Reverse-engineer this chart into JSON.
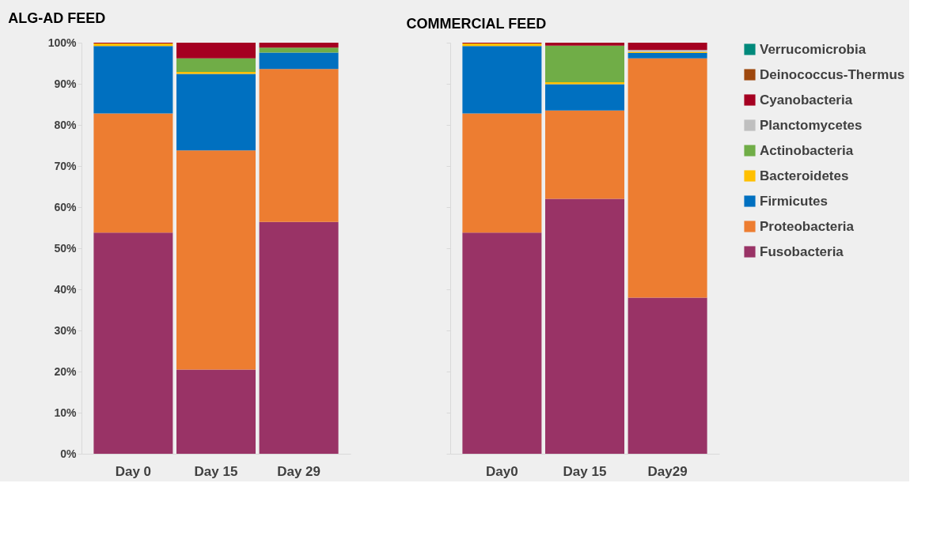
{
  "chart_data": [
    {
      "type": "bar",
      "stacked": true,
      "title": "ALG-AD FEED",
      "categories": [
        "Day 0",
        "Day 15",
        "Day 29"
      ],
      "ylim": [
        0,
        100
      ],
      "yticks": [
        {
          "value": 0,
          "label": "0%"
        },
        {
          "value": 10,
          "label": "10%"
        },
        {
          "value": 20,
          "label": "20%"
        },
        {
          "value": 30,
          "label": "30%"
        },
        {
          "value": 40,
          "label": "40%"
        },
        {
          "value": 50,
          "label": "50%"
        },
        {
          "value": 60,
          "label": "60%"
        },
        {
          "value": 70,
          "label": "70%"
        },
        {
          "value": 80,
          "label": "80%"
        },
        {
          "value": 90,
          "label": "90%"
        },
        {
          "value": 100,
          "label": "100%"
        }
      ],
      "grid": false,
      "legend": false,
      "series": [
        {
          "color": "#993366",
          "values": [
            53.8,
            20.5,
            56.4
          ]
        },
        {
          "color": "#ed7d31",
          "values": [
            29.0,
            53.3,
            37.2
          ]
        },
        {
          "color": "#0070c0",
          "values": [
            16.4,
            18.6,
            4.0
          ]
        },
        {
          "color": "#ffc000",
          "values": [
            0.6,
            0.5,
            null
          ]
        },
        {
          "color": "#70ad47",
          "values": [
            null,
            3.3,
            1.2
          ]
        },
        {
          "color": "#a50021",
          "values": [
            0.2,
            3.8,
            1.2
          ]
        }
      ]
    },
    {
      "type": "bar",
      "stacked": true,
      "title": "COMMERCIAL FEED",
      "categories": [
        "Day0",
        "Day 15",
        "Day29"
      ],
      "ylim": [
        0,
        100
      ],
      "yticks": [
        {
          "value": 0,
          "label": null
        },
        {
          "value": 10,
          "label": null
        },
        {
          "value": 20,
          "label": null
        },
        {
          "value": 30,
          "label": null
        },
        {
          "value": 40,
          "label": null
        },
        {
          "value": 50,
          "label": null
        },
        {
          "value": 60,
          "label": null
        },
        {
          "value": 70,
          "label": null
        },
        {
          "value": 80,
          "label": null
        },
        {
          "value": 90,
          "label": null
        },
        {
          "value": 100,
          "label": null
        }
      ],
      "tick_labels": "x",
      "grid": false,
      "legend": "right",
      "series": [
        {
          "name": "Fusobacteria",
          "color": "#993366",
          "values": [
            53.8,
            62.0,
            38.0
          ]
        },
        {
          "name": "Proteobacteria",
          "color": "#ed7d31",
          "values": [
            29.0,
            21.5,
            58.2
          ]
        },
        {
          "name": "Firmicutes",
          "color": "#0070c0",
          "values": [
            16.4,
            6.4,
            1.3
          ]
        },
        {
          "name": "Bacteroidetes",
          "color": "#ffc000",
          "values": [
            0.6,
            0.5,
            0.3
          ]
        },
        {
          "name": "Actinobacteria",
          "color": "#70ad47",
          "values": [
            null,
            8.9,
            null
          ]
        },
        {
          "name": "Planctomycetes",
          "color": "#bfbfbf",
          "values": [
            null,
            null,
            0.4
          ]
        },
        {
          "name": "Cyanobacteria",
          "color": "#a50021",
          "values": [
            0.2,
            0.7,
            1.8
          ]
        },
        {
          "name": "Deinococcus-Thermus",
          "color": "#9e480e",
          "values": [
            null,
            null,
            null
          ]
        },
        {
          "name": "Verrucomicrobia",
          "color": "#00897b",
          "values": [
            null,
            null,
            null
          ]
        }
      ]
    }
  ]
}
